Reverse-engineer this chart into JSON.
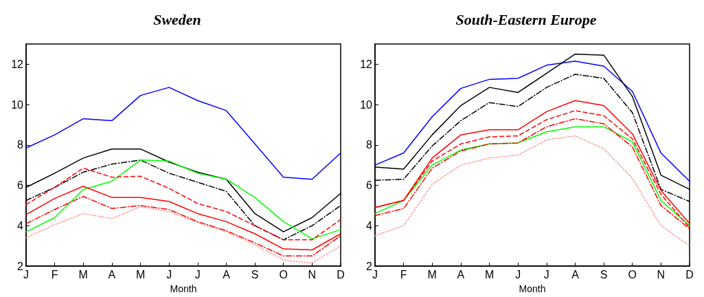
{
  "chart_data": [
    {
      "type": "line",
      "title": "Sweden",
      "xlabel": "Month",
      "categories": [
        "J",
        "F",
        "M",
        "A",
        "M",
        "J",
        "J",
        "A",
        "S",
        "O",
        "N",
        "D"
      ],
      "ylim": [
        2,
        13
      ],
      "yticks": [
        2,
        4,
        6,
        8,
        10,
        12
      ],
      "grid": false,
      "marker": "none",
      "series": [
        {
          "color": "#0000ff",
          "line_style": "solid",
          "values": [
            7.85,
            8.5,
            9.3,
            9.2,
            10.45,
            10.85,
            10.2,
            9.7,
            8.05,
            6.4,
            6.3,
            7.6
          ]
        },
        {
          "color": "#000000",
          "line_style": "solid",
          "values": [
            5.9,
            6.6,
            7.35,
            7.8,
            7.8,
            7.15,
            6.65,
            6.3,
            4.6,
            3.7,
            4.4,
            5.6
          ]
        },
        {
          "color": "#000000",
          "line_style": "dashdot",
          "values": [
            5.25,
            5.9,
            6.65,
            7.05,
            7.25,
            6.6,
            6.15,
            5.7,
            4.0,
            3.3,
            4.0,
            5.0
          ]
        },
        {
          "color": "#00ff00",
          "line_style": "solid",
          "values": [
            3.7,
            4.4,
            5.8,
            6.2,
            7.25,
            7.2,
            6.6,
            6.3,
            5.4,
            4.2,
            3.35,
            3.8
          ]
        },
        {
          "color": "#ff0000",
          "line_style": "dashed",
          "values": [
            5.05,
            5.9,
            6.85,
            6.4,
            6.45,
            5.85,
            5.1,
            4.7,
            4.0,
            3.3,
            3.3,
            4.3
          ]
        },
        {
          "color": "#ff0000",
          "line_style": "solid",
          "values": [
            4.55,
            5.35,
            5.95,
            5.4,
            5.4,
            5.2,
            4.6,
            4.2,
            3.6,
            2.85,
            2.8,
            3.6
          ]
        },
        {
          "color": "#ff0000",
          "line_style": "dashdot",
          "values": [
            4.1,
            4.8,
            5.45,
            4.85,
            5.0,
            4.8,
            4.2,
            3.75,
            3.15,
            2.5,
            2.5,
            3.5
          ]
        },
        {
          "color": "#ff8080",
          "line_style": "dotted",
          "values": [
            3.4,
            4.05,
            4.6,
            4.35,
            4.95,
            4.7,
            4.15,
            3.7,
            3.05,
            2.3,
            2.15,
            3.0
          ]
        }
      ]
    },
    {
      "type": "line",
      "title": "South-Eastern Europe",
      "xlabel": "Month",
      "categories": [
        "J",
        "F",
        "M",
        "A",
        "M",
        "J",
        "J",
        "A",
        "S",
        "O",
        "N",
        "D"
      ],
      "ylim": [
        2,
        13
      ],
      "yticks": [
        2,
        4,
        6,
        8,
        10,
        12
      ],
      "grid": false,
      "marker": "none",
      "series": [
        {
          "color": "#0000ff",
          "line_style": "solid",
          "values": [
            7.0,
            7.6,
            9.4,
            10.8,
            11.25,
            11.3,
            11.95,
            12.15,
            11.9,
            10.65,
            7.6,
            6.2
          ]
        },
        {
          "color": "#000000",
          "line_style": "solid",
          "values": [
            6.9,
            6.8,
            8.5,
            9.95,
            10.85,
            10.6,
            11.55,
            12.5,
            12.45,
            10.4,
            6.5,
            5.8
          ]
        },
        {
          "color": "#000000",
          "line_style": "dashdot",
          "values": [
            6.25,
            6.3,
            7.95,
            9.2,
            10.1,
            9.9,
            10.85,
            11.5,
            11.3,
            9.6,
            5.8,
            5.2
          ]
        },
        {
          "color": "#00ff00",
          "line_style": "solid",
          "values": [
            4.6,
            5.25,
            7.0,
            7.75,
            8.05,
            8.1,
            8.65,
            8.9,
            8.9,
            8.15,
            5.25,
            4.0
          ]
        },
        {
          "color": "#ff0000",
          "line_style": "dashed",
          "values": [
            4.9,
            5.25,
            7.2,
            8.05,
            8.4,
            8.45,
            9.25,
            9.7,
            9.45,
            8.3,
            5.55,
            3.9
          ]
        },
        {
          "color": "#ff0000",
          "line_style": "solid",
          "values": [
            4.9,
            5.25,
            7.35,
            8.5,
            8.75,
            8.75,
            9.65,
            10.2,
            9.95,
            8.55,
            5.75,
            4.1
          ]
        },
        {
          "color": "#ff0000",
          "line_style": "dashdot",
          "values": [
            4.5,
            4.85,
            6.85,
            7.7,
            8.05,
            8.1,
            8.9,
            9.3,
            9.05,
            7.9,
            5.0,
            3.85
          ]
        },
        {
          "color": "#ff8080",
          "line_style": "dotted",
          "values": [
            3.5,
            4.0,
            6.05,
            7.0,
            7.35,
            7.5,
            8.25,
            8.45,
            7.8,
            6.35,
            4.0,
            3.0
          ]
        }
      ]
    }
  ]
}
